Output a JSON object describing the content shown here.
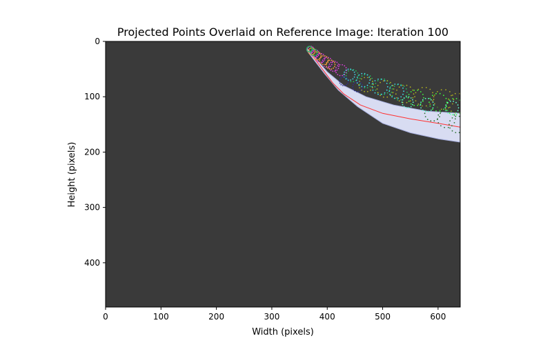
{
  "chart_data": {
    "type": "scatter",
    "title": "Projected Points Overlaid on Reference Image: Iteration 100",
    "xlabel": "Width (pixels)",
    "ylabel": "Height (pixels)",
    "xlim": [
      0,
      640
    ],
    "ylim": [
      480,
      0
    ],
    "y_inverted": true,
    "xticks": [
      0,
      100,
      200,
      300,
      400,
      500,
      600
    ],
    "yticks": [
      0,
      100,
      200,
      300,
      400
    ],
    "background_color": "#3a3a3a",
    "grid": false,
    "legend": "none",
    "reference_image": {
      "description_shape": "curved tube silhouette",
      "color": "#d8dcf2",
      "upper_edge": [
        [
          365,
          14
        ],
        [
          380,
          32
        ],
        [
          400,
          55
        ],
        [
          430,
          80
        ],
        [
          470,
          100
        ],
        [
          520,
          115
        ],
        [
          580,
          126
        ],
        [
          640,
          130
        ]
      ],
      "lower_edge": [
        [
          640,
          182
        ],
        [
          600,
          176
        ],
        [
          550,
          165
        ],
        [
          500,
          148
        ],
        [
          455,
          118
        ],
        [
          420,
          88
        ],
        [
          395,
          58
        ],
        [
          375,
          32
        ],
        [
          363,
          16
        ]
      ]
    },
    "series": [
      {
        "color": "#ff3030",
        "style": "line",
        "points": [
          [
            368,
            18
          ],
          [
            380,
            35
          ],
          [
            395,
            55
          ],
          [
            410,
            75
          ],
          [
            430,
            95
          ],
          [
            460,
            115
          ],
          [
            500,
            130
          ],
          [
            550,
            140
          ],
          [
            600,
            148
          ],
          [
            640,
            155
          ]
        ]
      },
      {
        "color": "#e040e0",
        "style": "rings",
        "rings": [
          [
            370,
            15,
            6
          ],
          [
            378,
            22,
            7
          ],
          [
            388,
            30,
            8
          ],
          [
            400,
            38,
            9
          ],
          [
            412,
            45,
            9
          ],
          [
            425,
            52,
            10
          ]
        ]
      },
      {
        "color": "#ffa040",
        "style": "rings",
        "rings": [
          [
            372,
            18,
            6
          ],
          [
            382,
            26,
            7
          ],
          [
            394,
            34,
            8
          ],
          [
            406,
            42,
            8
          ]
        ]
      },
      {
        "color": "#20c060",
        "style": "rings",
        "rings": [
          [
            368,
            14,
            5
          ],
          [
            376,
            20,
            6
          ],
          [
            445,
            62,
            11
          ],
          [
            470,
            72,
            12
          ],
          [
            500,
            82,
            14
          ],
          [
            530,
            92,
            14
          ]
        ]
      },
      {
        "color": "#40e0f0",
        "style": "rings",
        "rings": [
          [
            440,
            60,
            10
          ],
          [
            465,
            70,
            12
          ],
          [
            495,
            82,
            14
          ],
          [
            525,
            90,
            13
          ]
        ]
      },
      {
        "color": "#b0b020",
        "style": "rings",
        "rings": [
          [
            470,
            78,
            13
          ],
          [
            505,
            86,
            15
          ],
          [
            540,
            95,
            16
          ],
          [
            575,
            100,
            17
          ],
          [
            610,
            105,
            18
          ],
          [
            635,
            112,
            18
          ]
        ]
      },
      {
        "color": "#40ff40",
        "style": "rings",
        "rings": [
          [
            560,
            102,
            14
          ],
          [
            600,
            110,
            16
          ],
          [
            630,
            118,
            15
          ]
        ]
      },
      {
        "color": "#2a7030",
        "style": "rings",
        "rings": [
          [
            590,
            130,
            14
          ],
          [
            615,
            140,
            16
          ],
          [
            635,
            150,
            15
          ]
        ]
      },
      {
        "color": "#60ffd0",
        "style": "rings",
        "rings": [
          [
            545,
            110,
            10
          ],
          [
            580,
            115,
            12
          ],
          [
            625,
            120,
            12
          ]
        ]
      },
      {
        "color": "#303090",
        "style": "rings",
        "rings": [
          [
            430,
            72,
            8
          ],
          [
            455,
            82,
            9
          ]
        ]
      }
    ]
  }
}
